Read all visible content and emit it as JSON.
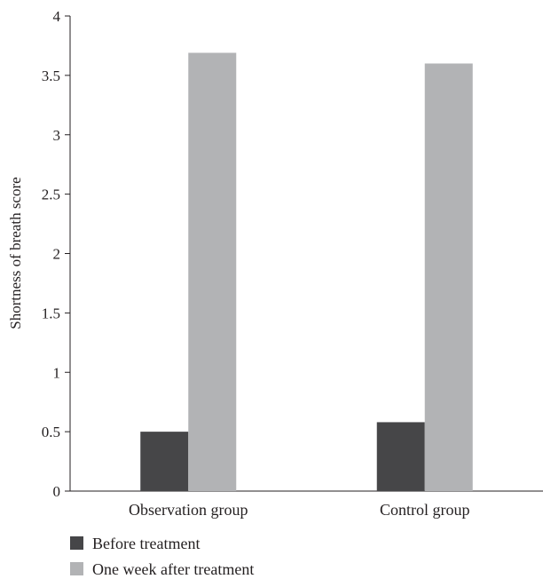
{
  "chart_data": {
    "type": "bar",
    "categories": [
      "Observation group",
      "Control group"
    ],
    "series": [
      {
        "name": "Before treatment",
        "values": [
          0.5,
          0.58
        ],
        "color": "#464648"
      },
      {
        "name": "One week after treatment",
        "values": [
          3.69,
          3.6
        ],
        "color": "#b2b3b5"
      }
    ],
    "title": "",
    "xlabel": "",
    "ylabel": "Shortness of breath score",
    "ylim": [
      0,
      4
    ],
    "yticks": [
      "0",
      "0.5",
      "1",
      "1.5",
      "2",
      "2.5",
      "3",
      "3.5",
      "4"
    ],
    "grid": false,
    "legend_position": "bottom-left"
  }
}
